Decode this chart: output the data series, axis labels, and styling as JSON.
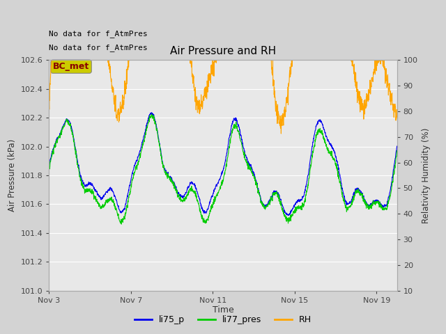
{
  "title": "Air Pressure and RH",
  "xlabel": "Time",
  "ylabel_left": "Air Pressure (kPa)",
  "ylabel_right": "Relativity Humidity (%)",
  "text_no_data1": "No data for f_AtmPres",
  "text_no_data2": "No data for f_AtmPres",
  "bc_met_label": "BC_met",
  "ylim_left": [
    101.0,
    102.6
  ],
  "ylim_right": [
    10,
    100
  ],
  "yticks_left": [
    101.0,
    101.2,
    101.4,
    101.6,
    101.8,
    102.0,
    102.2,
    102.4,
    102.6
  ],
  "yticks_right": [
    10,
    20,
    30,
    40,
    50,
    60,
    70,
    80,
    90,
    100
  ],
  "xtick_labels": [
    "Nov 3",
    "Nov 7",
    "Nov 11",
    "Nov 15",
    "Nov 19"
  ],
  "xtick_positions": [
    0,
    4,
    8,
    12,
    16
  ],
  "xlim": [
    0,
    17
  ],
  "color_li75": "#0000ee",
  "color_li77": "#00cc00",
  "color_rh": "#ffa500",
  "fig_bg": "#d3d3d3",
  "plot_bg": "#e8e8e8",
  "legend_entries": [
    "li75_p",
    "li77_pres",
    "RH"
  ],
  "bc_met_bg": "#cccc00",
  "bc_met_text": "#880000",
  "bc_met_edge": "#888888"
}
